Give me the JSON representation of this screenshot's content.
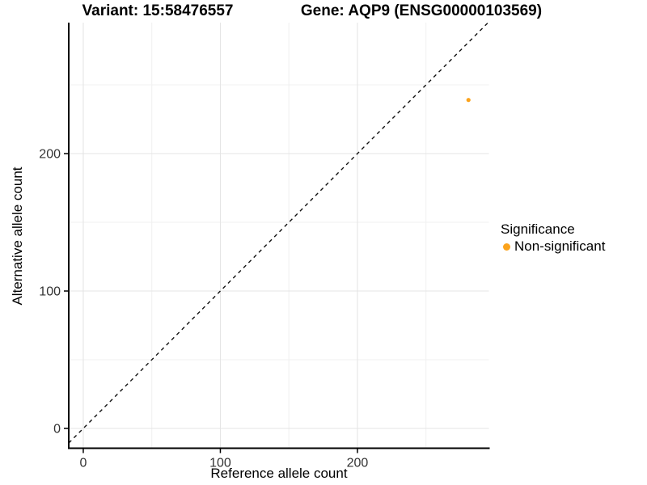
{
  "chart_data": {
    "type": "scatter",
    "title_variant": "Variant: 15:58476557",
    "title_gene": "Gene: AQP9 (ENSG00000103569)",
    "xlabel": "Reference allele count",
    "ylabel": "Alternative allele count",
    "x_ticks": [
      0,
      100,
      200
    ],
    "y_ticks": [
      0,
      100,
      200
    ],
    "x_minor_gridlines": [
      50,
      150,
      250
    ],
    "y_minor_gridlines": [
      50,
      150,
      250
    ],
    "xlim": [
      -10.6,
      295.9
    ],
    "ylim": [
      -14.4,
      295.3
    ],
    "grid": true,
    "points": [
      {
        "x": 281,
        "y": 239,
        "series": "Non-significant"
      }
    ],
    "identity_line": {
      "type": "y=x",
      "style": "dashed"
    },
    "legend": {
      "title": "Significance",
      "position": "right",
      "entries": [
        {
          "label": "Non-significant",
          "color": "#FBA31C"
        }
      ]
    }
  },
  "colors": {
    "point": "#FBA31C",
    "grid_major": "#e4e4e4",
    "grid_minor": "#f0f0f0",
    "axis_line": "#000000",
    "tick_text": "#333333",
    "identity_line": "#111111"
  }
}
